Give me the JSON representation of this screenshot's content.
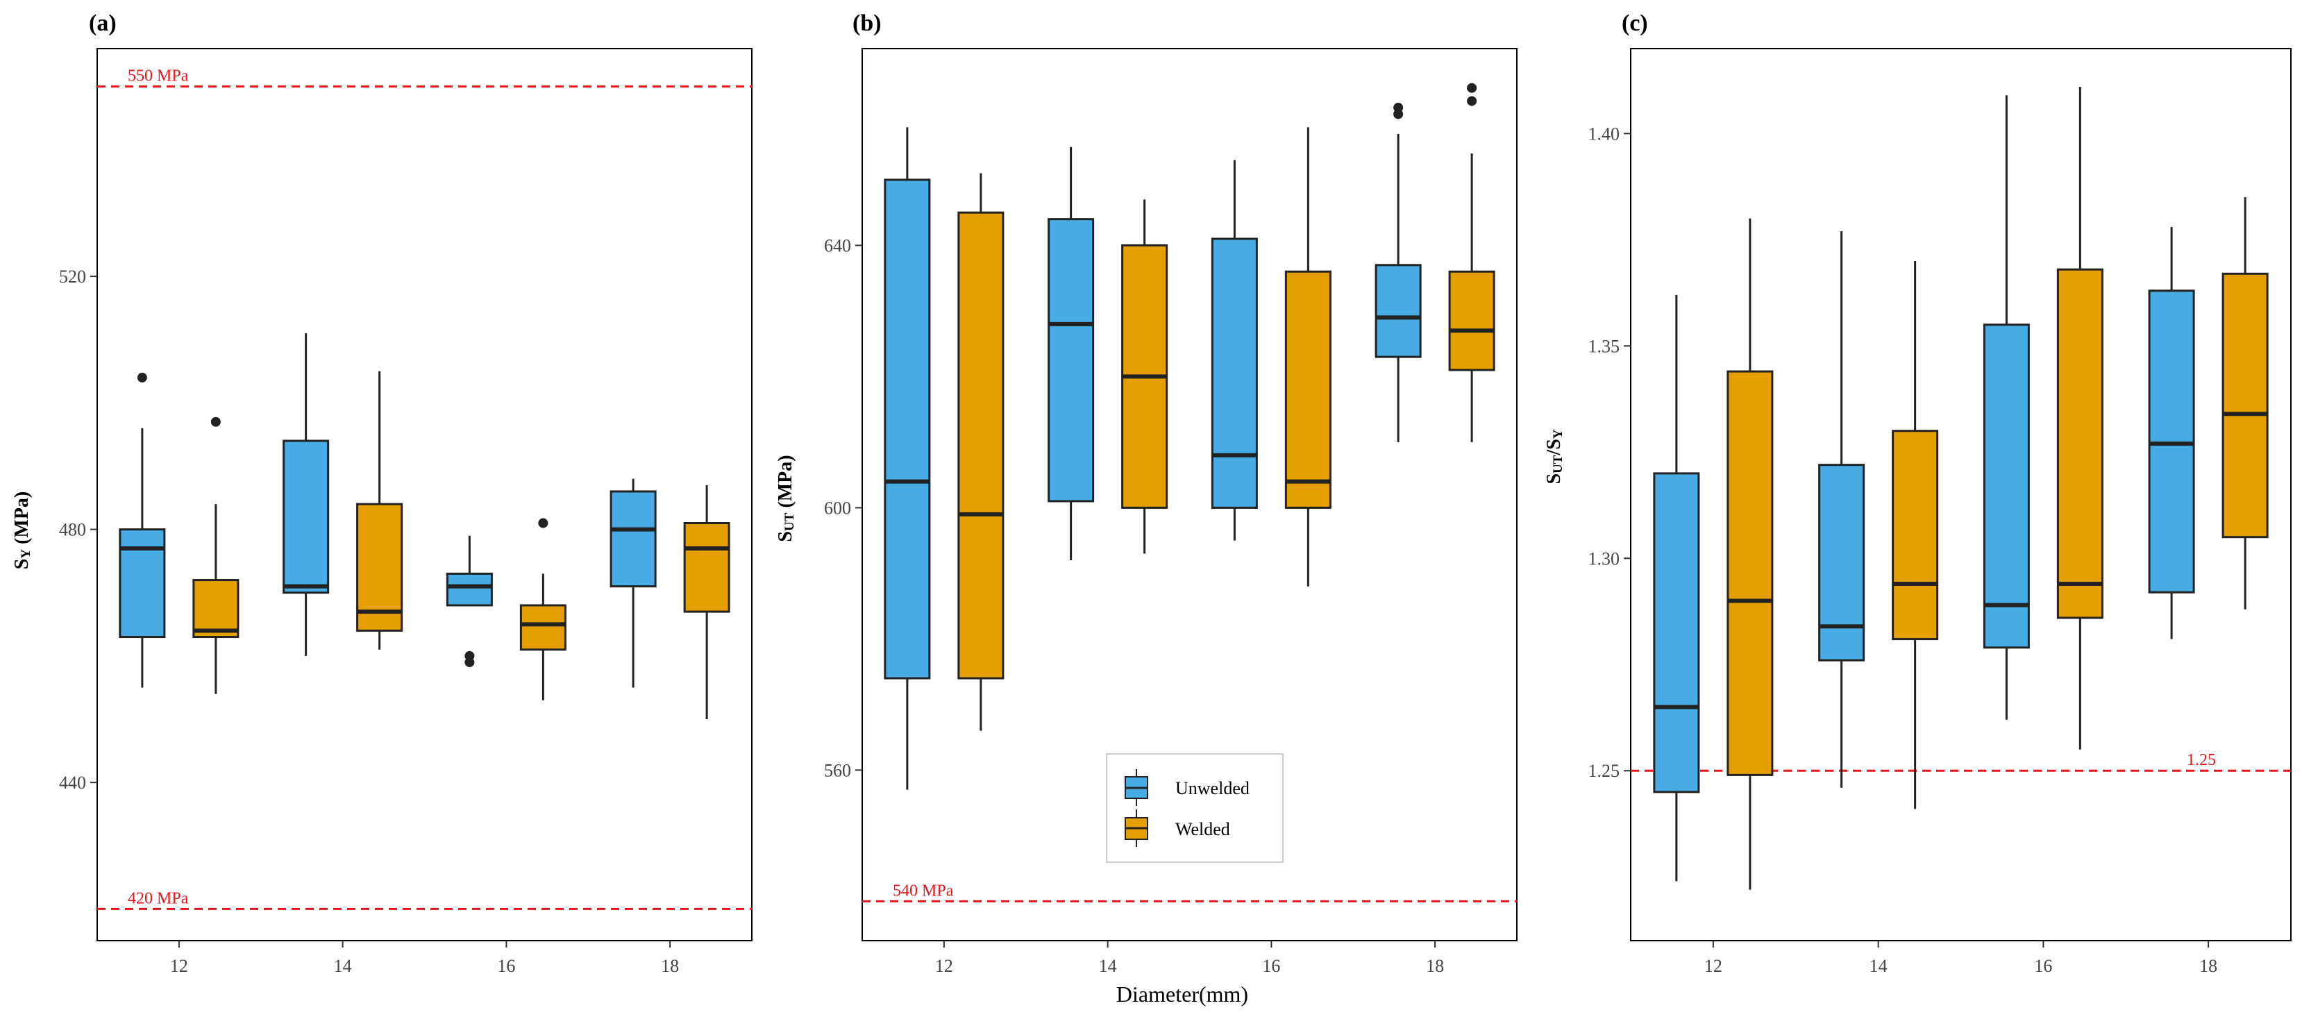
{
  "figure": {
    "xlabel": "Diameter(mm)",
    "legend": {
      "placement": "bottom-center of panel (b)",
      "entries": [
        {
          "label": "Unwelded",
          "color": "#47ace3"
        },
        {
          "label": "Welded",
          "color": "#e69f00"
        }
      ]
    }
  },
  "chart_data": [
    {
      "panel": "(a)",
      "type": "box",
      "ylabel_main": "S",
      "ylabel_sub": "Y",
      "ylabel_unit": " (MPa)",
      "categories": [
        "12",
        "14",
        "16",
        "18"
      ],
      "ylim": [
        415,
        556
      ],
      "yticks": [
        440,
        480,
        520
      ],
      "ytick_labels": [
        "440",
        "480",
        "520"
      ],
      "grid": false,
      "reference_lines": [
        {
          "value": 550,
          "label": "550 MPa",
          "color": "#e8141b",
          "label_side": "left"
        },
        {
          "value": 420,
          "label": "420 MPa",
          "color": "#e8141b",
          "label_side": "left"
        }
      ],
      "series": [
        {
          "name": "Unwelded",
          "color": "#47ace3",
          "boxes": [
            {
              "min": 455,
              "q1": 463,
              "median": 477,
              "q3": 480,
              "max": 496,
              "outliers": [
                504
              ]
            },
            {
              "min": 460,
              "q1": 470,
              "median": 471,
              "q3": 494,
              "max": 511,
              "outliers": []
            },
            {
              "min": 468,
              "q1": 468,
              "median": 471,
              "q3": 473,
              "max": 479,
              "outliers": [
                459,
                460
              ]
            },
            {
              "min": 455,
              "q1": 471,
              "median": 480,
              "q3": 486,
              "max": 488,
              "outliers": []
            }
          ]
        },
        {
          "name": "Welded",
          "color": "#e69f00",
          "boxes": [
            {
              "min": 454,
              "q1": 463,
              "median": 464,
              "q3": 472,
              "max": 484,
              "outliers": [
                497
              ]
            },
            {
              "min": 461,
              "q1": 464,
              "median": 467,
              "q3": 484,
              "max": 505,
              "outliers": []
            },
            {
              "min": 453,
              "q1": 461,
              "median": 465,
              "q3": 468,
              "max": 473,
              "outliers": [
                481
              ]
            },
            {
              "min": 450,
              "q1": 467,
              "median": 477,
              "q3": 481,
              "max": 487,
              "outliers": []
            }
          ]
        }
      ]
    },
    {
      "panel": "(b)",
      "type": "box",
      "ylabel_main": "S",
      "ylabel_sub": "UT",
      "ylabel_unit": " (MPa)",
      "categories": [
        "12",
        "14",
        "16",
        "18"
      ],
      "ylim": [
        534,
        670
      ],
      "yticks": [
        560,
        600,
        640
      ],
      "ytick_labels": [
        "560",
        "600",
        "640"
      ],
      "grid": false,
      "reference_lines": [
        {
          "value": 540,
          "label": "540 MPa",
          "color": "#e8141b",
          "label_side": "left"
        }
      ],
      "series": [
        {
          "name": "Unwelded",
          "color": "#47ace3",
          "boxes": [
            {
              "min": 557,
              "q1": 574,
              "median": 604,
              "q3": 650,
              "max": 658,
              "outliers": []
            },
            {
              "min": 592,
              "q1": 601,
              "median": 628,
              "q3": 644,
              "max": 655,
              "outliers": []
            },
            {
              "min": 595,
              "q1": 600,
              "median": 608,
              "q3": 641,
              "max": 653,
              "outliers": []
            },
            {
              "min": 610,
              "q1": 623,
              "median": 629,
              "q3": 637,
              "max": 657,
              "outliers": [
                660,
                661
              ]
            }
          ]
        },
        {
          "name": "Welded",
          "color": "#e69f00",
          "boxes": [
            {
              "min": 566,
              "q1": 574,
              "median": 599,
              "q3": 645,
              "max": 651,
              "outliers": []
            },
            {
              "min": 593,
              "q1": 600,
              "median": 620,
              "q3": 640,
              "max": 647,
              "outliers": []
            },
            {
              "min": 588,
              "q1": 600,
              "median": 604,
              "q3": 636,
              "max": 658,
              "outliers": []
            },
            {
              "min": 610,
              "q1": 621,
              "median": 627,
              "q3": 636,
              "max": 654,
              "outliers": [
                662,
                664
              ]
            }
          ]
        }
      ]
    },
    {
      "panel": "(c)",
      "type": "box",
      "ylabel_main": "S",
      "ylabel_sub": "UT",
      "ylabel_mid": "/S",
      "ylabel_sub2": "Y",
      "categories": [
        "12",
        "14",
        "16",
        "18"
      ],
      "ylim": [
        1.21,
        1.42
      ],
      "yticks": [
        1.25,
        1.3,
        1.35,
        1.4
      ],
      "ytick_labels": [
        "1.25",
        "1.30",
        "1.35",
        "1.40"
      ],
      "grid": false,
      "reference_lines": [
        {
          "value": 1.25,
          "label": "1.25",
          "color": "#e8141b",
          "label_side": "right"
        }
      ],
      "series": [
        {
          "name": "Unwelded",
          "color": "#47ace3",
          "boxes": [
            {
              "min": 1.224,
              "q1": 1.245,
              "median": 1.265,
              "q3": 1.32,
              "max": 1.362,
              "outliers": []
            },
            {
              "min": 1.246,
              "q1": 1.276,
              "median": 1.284,
              "q3": 1.322,
              "max": 1.377,
              "outliers": []
            },
            {
              "min": 1.262,
              "q1": 1.279,
              "median": 1.289,
              "q3": 1.355,
              "max": 1.409,
              "outliers": []
            },
            {
              "min": 1.281,
              "q1": 1.292,
              "median": 1.327,
              "q3": 1.363,
              "max": 1.378,
              "outliers": []
            }
          ]
        },
        {
          "name": "Welded",
          "color": "#e69f00",
          "boxes": [
            {
              "min": 1.222,
              "q1": 1.249,
              "median": 1.29,
              "q3": 1.344,
              "max": 1.38,
              "outliers": []
            },
            {
              "min": 1.241,
              "q1": 1.281,
              "median": 1.294,
              "q3": 1.33,
              "max": 1.37,
              "outliers": []
            },
            {
              "min": 1.255,
              "q1": 1.286,
              "median": 1.294,
              "q3": 1.368,
              "max": 1.411,
              "outliers": []
            },
            {
              "min": 1.288,
              "q1": 1.305,
              "median": 1.334,
              "q3": 1.367,
              "max": 1.385,
              "outliers": []
            }
          ]
        }
      ]
    }
  ]
}
